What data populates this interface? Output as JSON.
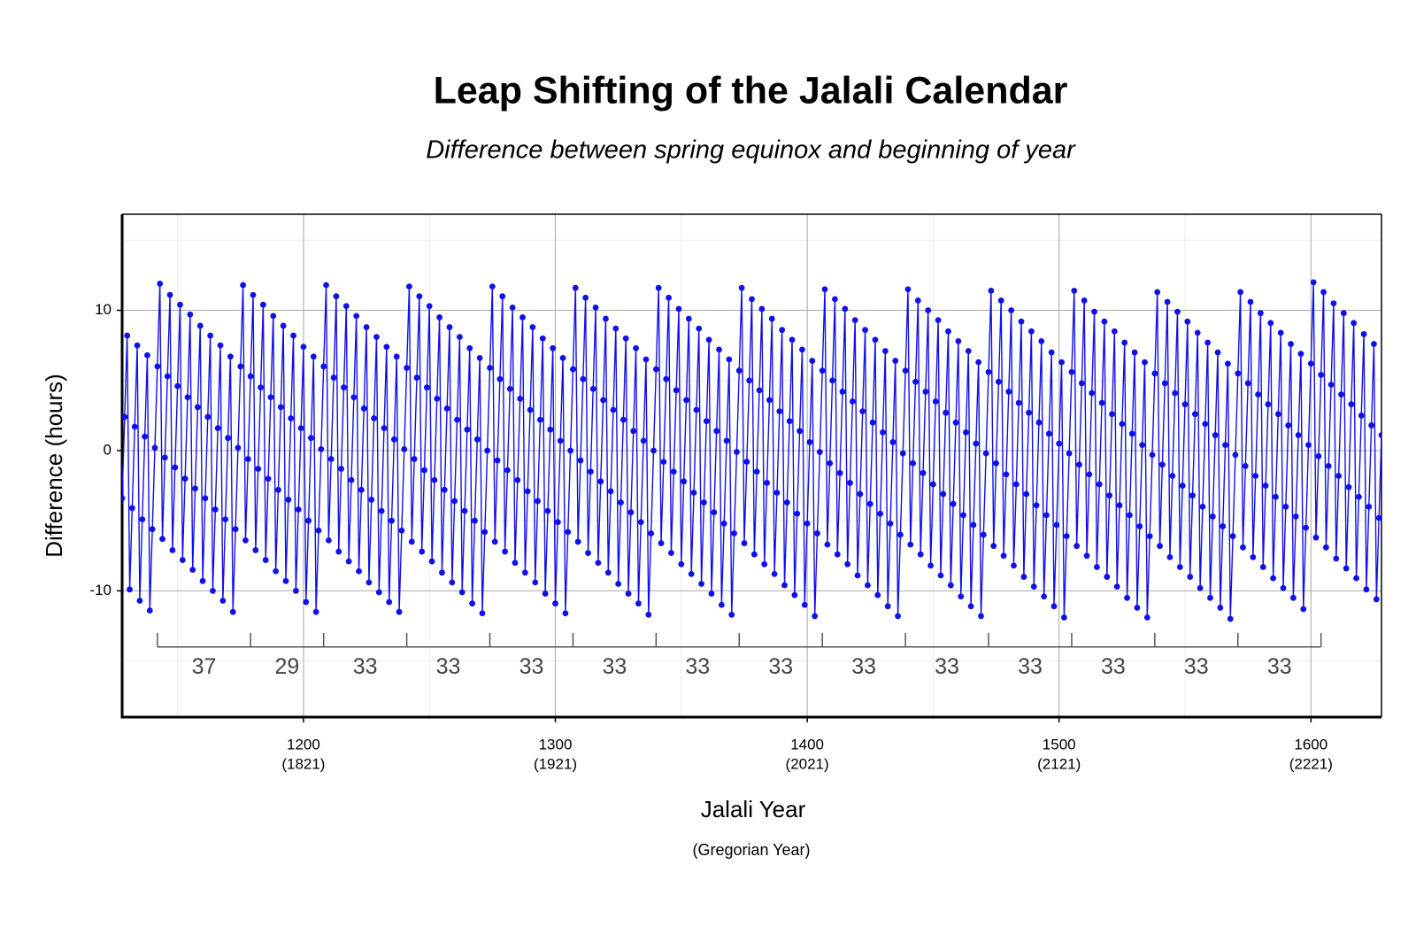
{
  "chart_data": {
    "type": "line",
    "title": "Leap Shifting of the Jalali Calendar",
    "subtitle": "Difference between spring equinox and beginning of year",
    "x_label": "Jalali Year",
    "x_sublabel": "(Gregorian Year)",
    "y_label": "Difference (hours)",
    "xlim": [
      1128,
      1628
    ],
    "ylim": [
      -19,
      16.85
    ],
    "xticks": [
      1200,
      1300,
      1400,
      1500,
      1600
    ],
    "xtick_sublabels": [
      "(1821)",
      "(1921)",
      "(2021)",
      "(2121)",
      "(2221)"
    ],
    "yticks": [
      -10,
      0,
      10
    ],
    "grid": true,
    "xminor": [
      1150,
      1250,
      1350,
      1450,
      1550
    ],
    "yminor": [
      -15,
      -5,
      5,
      15
    ],
    "cycles": {
      "bounds": [
        1142,
        1179,
        1208,
        1241,
        1274,
        1307,
        1340,
        1373,
        1406,
        1439,
        1472,
        1505,
        1538,
        1571,
        1604
      ],
      "lengths": [
        37,
        29,
        33,
        33,
        33,
        33,
        33,
        33,
        33,
        33,
        33,
        33,
        33,
        33
      ]
    },
    "series": [
      {
        "name": "Difference",
        "color": "#1010e8",
        "x": [
          1128,
          1129,
          1130,
          1131,
          1132,
          1133,
          1134,
          1135,
          1136,
          1137,
          1138,
          1139,
          1140,
          1141,
          1142,
          1143,
          1144,
          1145,
          1146,
          1147,
          1148,
          1149,
          1150,
          1151,
          1152,
          1153,
          1154,
          1155,
          1156,
          1157,
          1158,
          1159,
          1160,
          1161,
          1162,
          1163,
          1164,
          1165,
          1166,
          1167,
          1168,
          1169,
          1170,
          1171,
          1172,
          1173,
          1174,
          1175,
          1176,
          1177,
          1178,
          1179,
          1180,
          1181,
          1182,
          1183,
          1184,
          1185,
          1186,
          1187,
          1188,
          1189,
          1190,
          1191,
          1192,
          1193,
          1194,
          1195,
          1196,
          1197,
          1198,
          1199,
          1200,
          1201,
          1202,
          1203,
          1204,
          1205,
          1206,
          1207,
          1208,
          1209,
          1210,
          1211,
          1212,
          1213,
          1214,
          1215,
          1216,
          1217,
          1218,
          1219,
          1220,
          1221,
          1222,
          1223,
          1224,
          1225,
          1226,
          1227,
          1228,
          1229,
          1230,
          1231,
          1232,
          1233,
          1234,
          1235,
          1236,
          1237,
          1238,
          1239,
          1240,
          1241,
          1242,
          1243,
          1244,
          1245,
          1246,
          1247,
          1248,
          1249,
          1250,
          1251,
          1252,
          1253,
          1254,
          1255,
          1256,
          1257,
          1258,
          1259,
          1260,
          1261,
          1262,
          1263,
          1264,
          1265,
          1266,
          1267,
          1268,
          1269,
          1270,
          1271,
          1272,
          1273,
          1274,
          1275,
          1276,
          1277,
          1278,
          1279,
          1280,
          1281,
          1282,
          1283,
          1284,
          1285,
          1286,
          1287,
          1288,
          1289,
          1290,
          1291,
          1292,
          1293,
          1294,
          1295,
          1296,
          1297,
          1298,
          1299,
          1300,
          1301,
          1302,
          1303,
          1304,
          1305,
          1306,
          1307,
          1308,
          1309,
          1310,
          1311,
          1312,
          1313,
          1314,
          1315,
          1316,
          1317,
          1318,
          1319,
          1320,
          1321,
          1322,
          1323,
          1324,
          1325,
          1326,
          1327,
          1328,
          1329,
          1330,
          1331,
          1332,
          1333,
          1334,
          1335,
          1336,
          1337,
          1338,
          1339,
          1340,
          1341,
          1342,
          1343,
          1344,
          1345,
          1346,
          1347,
          1348,
          1349,
          1350,
          1351,
          1352,
          1353,
          1354,
          1355,
          1356,
          1357,
          1358,
          1359,
          1360,
          1361,
          1362,
          1363,
          1364,
          1365,
          1366,
          1367,
          1368,
          1369,
          1370,
          1371,
          1372,
          1373,
          1374,
          1375,
          1376,
          1377,
          1378,
          1379,
          1380,
          1381,
          1382,
          1383,
          1384,
          1385,
          1386,
          1387,
          1388,
          1389,
          1390,
          1391,
          1392,
          1393,
          1394,
          1395,
          1396,
          1397,
          1398,
          1399,
          1400,
          1401,
          1402,
          1403,
          1404,
          1405,
          1406,
          1407,
          1408,
          1409,
          1410,
          1411,
          1412,
          1413,
          1414,
          1415,
          1416,
          1417,
          1418,
          1419,
          1420,
          1421,
          1422,
          1423,
          1424,
          1425,
          1426,
          1427,
          1428,
          1429,
          1430,
          1431,
          1432,
          1433,
          1434,
          1435,
          1436,
          1437,
          1438,
          1439,
          1440,
          1441,
          1442,
          1443,
          1444,
          1445,
          1446,
          1447,
          1448,
          1449,
          1450,
          1451,
          1452,
          1453,
          1454,
          1455,
          1456,
          1457,
          1458,
          1459,
          1460,
          1461,
          1462,
          1463,
          1464,
          1465,
          1466,
          1467,
          1468,
          1469,
          1470,
          1471,
          1472,
          1473,
          1474,
          1475,
          1476,
          1477,
          1478,
          1479,
          1480,
          1481,
          1482,
          1483,
          1484,
          1485,
          1486,
          1487,
          1488,
          1489,
          1490,
          1491,
          1492,
          1493,
          1494,
          1495,
          1496,
          1497,
          1498,
          1499,
          1500,
          1501,
          1502,
          1503,
          1504,
          1505,
          1506,
          1507,
          1508,
          1509,
          1510,
          1511,
          1512,
          1513,
          1514,
          1515,
          1516,
          1517,
          1518,
          1519,
          1520,
          1521,
          1522,
          1523,
          1524,
          1525,
          1526,
          1527,
          1528,
          1529,
          1530,
          1531,
          1532,
          1533,
          1534,
          1535,
          1536,
          1537,
          1538,
          1539,
          1540,
          1541,
          1542,
          1543,
          1544,
          1545,
          1546,
          1547,
          1548,
          1549,
          1550,
          1551,
          1552,
          1553,
          1554,
          1555,
          1556,
          1557,
          1558,
          1559,
          1560,
          1561,
          1562,
          1563,
          1564,
          1565,
          1566,
          1567,
          1568,
          1569,
          1570,
          1571,
          1572,
          1573,
          1574,
          1575,
          1576,
          1577,
          1578,
          1579,
          1580,
          1581,
          1582,
          1583,
          1584,
          1585,
          1586,
          1587,
          1588,
          1589,
          1590,
          1591,
          1592,
          1593,
          1594,
          1595,
          1596,
          1597,
          1598,
          1599,
          1600,
          1601,
          1602,
          1603,
          1604,
          1605,
          1606,
          1607,
          1608,
          1609,
          1610,
          1611,
          1612,
          1613,
          1614,
          1615,
          1616,
          1617,
          1618,
          1619,
          1620,
          1621,
          1622,
          1623,
          1624,
          1625,
          1626,
          1627,
          1628
        ],
        "values": [
          -3.4,
          2.4,
          8.2,
          -9.9,
          -4.1,
          1.7,
          7.5,
          -10.7,
          -4.9,
          1.0,
          6.8,
          -11.4,
          -5.6,
          0.2,
          6.0,
          11.9,
          -6.3,
          -0.5,
          5.3,
          11.1,
          -7.1,
          -1.2,
          4.6,
          10.4,
          -7.8,
          -2.0,
          3.8,
          9.7,
          -8.5,
          -2.7,
          3.1,
          8.9,
          -9.3,
          -3.4,
          2.4,
          8.2,
          -10.0,
          -4.2,
          1.6,
          7.5,
          -10.7,
          -4.9,
          0.9,
          6.7,
          -11.5,
          -5.6,
          0.2,
          6.0,
          11.8,
          -6.4,
          -0.6,
          5.3,
          11.1,
          -7.1,
          -1.3,
          4.5,
          10.4,
          -7.8,
          -2.0,
          3.8,
          9.6,
          -8.6,
          -2.8,
          3.1,
          8.9,
          -9.3,
          -3.5,
          2.3,
          8.2,
          -10.0,
          -4.2,
          1.6,
          7.4,
          -10.8,
          -5.0,
          0.9,
          6.7,
          -11.5,
          -5.7,
          0.1,
          6.0,
          11.8,
          -6.4,
          -0.6,
          5.2,
          11.0,
          -7.2,
          -1.3,
          4.5,
          10.3,
          -7.9,
          -2.1,
          3.8,
          9.6,
          -8.6,
          -2.8,
          3.0,
          8.8,
          -9.4,
          -3.5,
          2.3,
          8.1,
          -10.1,
          -4.3,
          1.6,
          7.4,
          -10.8,
          -5.0,
          0.8,
          6.7,
          -11.5,
          -5.7,
          0.1,
          5.9,
          11.7,
          -6.5,
          -0.6,
          5.2,
          11.0,
          -7.2,
          -1.4,
          4.5,
          10.3,
          -7.9,
          -2.1,
          3.7,
          9.5,
          -8.7,
          -2.8,
          3.0,
          8.8,
          -9.4,
          -3.6,
          2.2,
          8.1,
          -10.1,
          -4.3,
          1.5,
          7.3,
          -10.9,
          -5.0,
          0.8,
          6.6,
          -11.6,
          -5.8,
          0.0,
          5.9,
          11.7,
          -6.5,
          -0.7,
          5.1,
          11.0,
          -7.2,
          -1.4,
          4.4,
          10.2,
          -8.0,
          -2.1,
          3.7,
          9.5,
          -8.7,
          -2.9,
          2.9,
          8.8,
          -9.4,
          -3.6,
          2.2,
          8.0,
          -10.2,
          -4.3,
          1.5,
          7.3,
          -10.9,
          -5.1,
          0.7,
          6.6,
          -11.6,
          -5.8,
          0.0,
          5.8,
          11.6,
          -6.5,
          -0.7,
          5.1,
          10.9,
          -7.3,
          -1.5,
          4.4,
          10.2,
          -8.0,
          -2.2,
          3.6,
          9.4,
          -8.7,
          -2.9,
          2.9,
          8.7,
          -9.5,
          -3.7,
          2.2,
          8.0,
          -10.2,
          -4.4,
          1.4,
          7.3,
          -10.9,
          -5.1,
          0.7,
          6.5,
          -11.7,
          -5.9,
          0.0,
          5.8,
          11.6,
          -6.6,
          -0.8,
          5.1,
          10.9,
          -7.3,
          -1.5,
          4.3,
          10.1,
          -8.1,
          -2.2,
          3.6,
          9.4,
          -8.8,
          -3.0,
          2.9,
          8.7,
          -9.5,
          -3.7,
          2.1,
          7.9,
          -10.2,
          -4.4,
          1.4,
          7.2,
          -11.0,
          -5.2,
          0.7,
          6.5,
          -11.7,
          -5.9,
          -0.1,
          5.7,
          11.6,
          -6.6,
          -0.8,
          5.0,
          10.8,
          -7.4,
          -1.5,
          4.3,
          10.1,
          -8.1,
          -2.3,
          3.6,
          9.4,
          -8.8,
          -3.0,
          2.8,
          8.6,
          -9.6,
          -3.7,
          2.1,
          7.9,
          -10.3,
          -4.5,
          1.4,
          7.2,
          -11.0,
          -5.2,
          0.6,
          6.4,
          -11.8,
          -5.9,
          -0.1,
          5.7,
          11.5,
          -6.7,
          -0.9,
          5.0,
          10.8,
          -7.4,
          -1.6,
          4.2,
          10.1,
          -8.1,
          -2.3,
          3.5,
          9.3,
          -8.9,
          -3.1,
          2.8,
          8.6,
          -9.6,
          -3.8,
          2.0,
          7.9,
          -10.3,
          -4.5,
          1.3,
          7.1,
          -11.1,
          -5.2,
          0.6,
          6.4,
          -11.8,
          -6.0,
          -0.2,
          5.7,
          11.5,
          -6.7,
          -0.9,
          4.9,
          10.7,
          -7.4,
          -1.6,
          4.2,
          10.0,
          -8.2,
          -2.4,
          3.5,
          9.3,
          -8.9,
          -3.1,
          2.7,
          8.5,
          -9.6,
          -3.8,
          2.0,
          7.8,
          -10.4,
          -4.6,
          1.3,
          7.1,
          -11.1,
          -5.3,
          0.5,
          6.3,
          -11.8,
          -6.0,
          -0.2,
          5.6,
          11.4,
          -6.8,
          -0.9,
          4.9,
          10.7,
          -7.5,
          -1.7,
          4.2,
          10.0,
          -8.2,
          -2.4,
          3.4,
          9.2,
          -9.0,
          -3.1,
          2.7,
          8.5,
          -9.7,
          -3.9,
          2.0,
          7.8,
          -10.4,
          -4.6,
          1.2,
          7.0,
          -11.1,
          -5.3,
          0.5,
          6.3,
          -11.9,
          -6.1,
          -0.2,
          5.6,
          11.4,
          -6.8,
          -1.0,
          4.8,
          10.7,
          -7.5,
          -1.7,
          4.1,
          9.9,
          -8.3,
          -2.4,
          3.4,
          9.2,
          -9.0,
          -3.2,
          2.6,
          8.5,
          -9.7,
          -3.9,
          1.9,
          7.7,
          -10.5,
          -4.6,
          1.2,
          7.0,
          -11.2,
          -5.4,
          0.4,
          6.3,
          -11.9,
          -6.1,
          -0.3,
          5.5,
          11.3,
          -6.8,
          -1.0,
          4.8,
          10.6,
          -7.6,
          -1.8,
          4.1,
          9.9,
          -8.3,
          -2.5,
          3.3,
          9.2,
          -9.0,
          -3.2,
          2.6,
          8.4,
          -9.8,
          -4.0,
          1.9,
          7.7,
          -10.5,
          -4.7,
          1.1,
          7.0,
          -11.2,
          -5.4,
          0.4,
          6.2,
          -12.0,
          -6.1,
          -0.3,
          5.5,
          11.3,
          -6.9,
          -1.1,
          4.8,
          10.6,
          -7.6,
          -1.8,
          4.0,
          9.8,
          -8.3,
          -2.5,
          3.3,
          9.1,
          -9.1,
          -3.3,
          2.6,
          8.4,
          -9.8,
          -4.0,
          1.8,
          7.6,
          -10.5,
          -4.7,
          1.1,
          6.9,
          -11.3,
          -5.5,
          0.4,
          6.2,
          12.0,
          -6.2,
          -0.4,
          5.4,
          11.3,
          -6.9,
          -1.1,
          4.7,
          10.5,
          -7.7,
          -1.8,
          4.0,
          9.8,
          -8.4,
          -2.6,
          3.3,
          9.1,
          -9.1,
          -3.3,
          2.5,
          8.3,
          -9.9,
          -4.0,
          1.8,
          7.6,
          -10.6,
          -4.8,
          1.1
        ]
      }
    ]
  }
}
